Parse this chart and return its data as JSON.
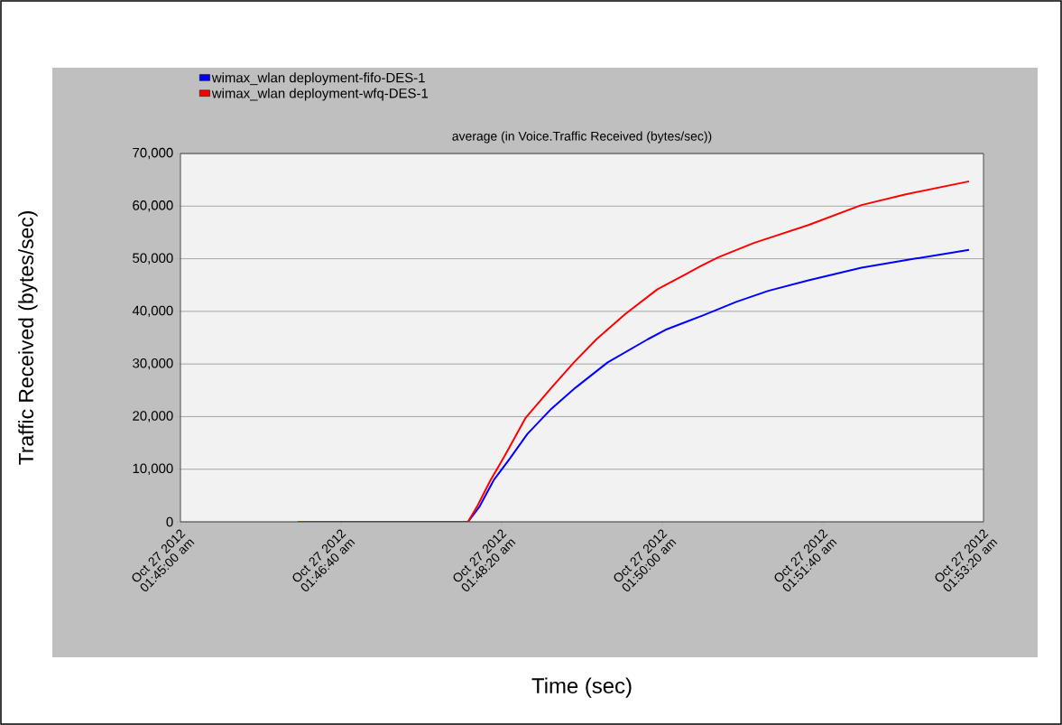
{
  "chart_data": {
    "type": "line",
    "title": "average (in Voice.Traffic Received (bytes/sec))",
    "xlabel": "Time (sec)",
    "ylabel": "Traffic Received (bytes/sec)",
    "xlim": [
      "2012-10-27T01:45:00",
      "2012-10-27T01:53:20"
    ],
    "ylim": [
      0,
      70000
    ],
    "xticks": [
      {
        "value": "2012-10-27T01:45:00",
        "label": "Oct 27 2012 01:45:00 am"
      },
      {
        "value": "2012-10-27T01:46:40",
        "label": "Oct 27 2012 01:46:40 am"
      },
      {
        "value": "2012-10-27T01:48:20",
        "label": "Oct 27 2012 01:48:20 am"
      },
      {
        "value": "2012-10-27T01:50:00",
        "label": "Oct 27 2012 01:50:00 am"
      },
      {
        "value": "2012-10-27T01:51:40",
        "label": "Oct 27 2012 01:51:40 am"
      },
      {
        "value": "2012-10-27T01:53:20",
        "label": "Oct 27 2012 01:53:20 am"
      }
    ],
    "yticks": [
      {
        "value": 0,
        "label": "0"
      },
      {
        "value": 10000,
        "label": "10,000"
      },
      {
        "value": 20000,
        "label": "20,000"
      },
      {
        "value": 30000,
        "label": "30,000"
      },
      {
        "value": 40000,
        "label": "40,000"
      },
      {
        "value": 50000,
        "label": "50,000"
      },
      {
        "value": 60000,
        "label": "60,000"
      },
      {
        "value": 70000,
        "label": "70,000"
      }
    ],
    "grid": "y",
    "legend": "top left",
    "marker": "none",
    "line_style": "solid",
    "series": [
      {
        "name": "wimax_wlan deployment-fifo-DES-1",
        "color": "#0000ff",
        "x": [
          "2012-10-27T01:46:13",
          "2012-10-27T01:47:59",
          "2012-10-27T01:48:06",
          "2012-10-27T01:48:15",
          "2012-10-27T01:48:25",
          "2012-10-27T01:48:36",
          "2012-10-27T01:48:51",
          "2012-10-27T01:49:06",
          "2012-10-27T01:49:26",
          "2012-10-27T01:49:51",
          "2012-10-27T01:50:02",
          "2012-10-27T01:50:26",
          "2012-10-27T01:50:46",
          "2012-10-27T01:51:06",
          "2012-10-27T01:51:31",
          "2012-10-27T01:52:04",
          "2012-10-27T01:52:37",
          "2012-10-27T01:53:11"
        ],
        "values": [
          0,
          0,
          2800,
          7900,
          12000,
          16700,
          21500,
          25500,
          30300,
          34700,
          36500,
          39300,
          41800,
          43900,
          45900,
          48300,
          50000,
          51700
        ]
      },
      {
        "name": "wimax_wlan deployment-wfq-DES-1",
        "color": "#ff0000",
        "x": [
          "2012-10-27T01:46:13",
          "2012-10-27T01:47:59",
          "2012-10-27T01:48:05",
          "2012-10-27T01:48:13",
          "2012-10-27T01:48:22",
          "2012-10-27T01:48:35",
          "2012-10-27T01:48:51",
          "2012-10-27T01:49:05",
          "2012-10-27T01:49:19",
          "2012-10-27T01:49:37",
          "2012-10-27T01:49:57",
          "2012-10-27T01:50:24",
          "2012-10-27T01:50:35",
          "2012-10-27T01:50:57",
          "2012-10-27T01:51:31",
          "2012-10-27T01:52:04",
          "2012-10-27T01:52:31",
          "2012-10-27T01:53:11"
        ],
        "values": [
          0,
          0,
          3100,
          7900,
          12600,
          19800,
          25500,
          30300,
          34700,
          39500,
          44200,
          48600,
          50300,
          53000,
          56400,
          60200,
          62200,
          64700
        ]
      }
    ]
  }
}
